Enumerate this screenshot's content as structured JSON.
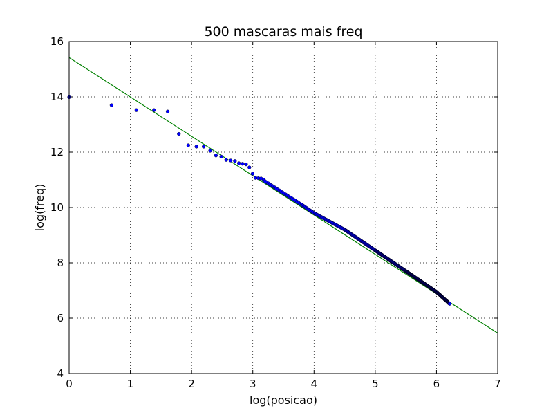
{
  "chart_data": {
    "type": "scatter",
    "title": "500 mascaras mais freq",
    "xlabel": "log(posicao)",
    "ylabel": "log(freq)",
    "xlim": [
      0,
      7
    ],
    "ylim": [
      4,
      16
    ],
    "x_ticks": [
      "0",
      "1",
      "2",
      "3",
      "4",
      "5",
      "6",
      "7"
    ],
    "y_ticks": [
      "4",
      "6",
      "8",
      "10",
      "12",
      "14",
      "16"
    ],
    "grid": true,
    "colors": {
      "points": "#0000ff",
      "fit_line": "#008000"
    },
    "series": [
      {
        "type": "scatter",
        "points": [
          [
            0.0,
            13.99
          ],
          [
            0.693,
            13.7
          ],
          [
            1.099,
            13.52
          ],
          [
            1.386,
            13.52
          ],
          [
            1.609,
            13.47
          ],
          [
            1.792,
            12.66
          ],
          [
            1.946,
            12.25
          ],
          [
            2.079,
            12.2
          ],
          [
            2.197,
            12.2
          ],
          [
            2.303,
            12.05
          ],
          [
            2.398,
            11.88
          ],
          [
            2.485,
            11.84
          ],
          [
            2.565,
            11.72
          ],
          [
            2.639,
            11.7
          ],
          [
            2.708,
            11.68
          ],
          [
            2.773,
            11.6
          ],
          [
            2.833,
            11.58
          ],
          [
            2.89,
            11.56
          ],
          [
            2.944,
            11.45
          ],
          [
            2.996,
            11.22
          ],
          [
            3.045,
            11.07
          ],
          [
            3.091,
            11.06
          ],
          [
            3.135,
            11.05
          ],
          [
            3.178,
            11.0
          ]
        ],
        "dense_segments": [
          {
            "x_start": 3.2,
            "y_start": 10.95,
            "x_end": 3.8,
            "y_end": 10.1,
            "n": 23
          },
          {
            "x_start": 3.8,
            "y_start": 10.1,
            "x_end": 4.0,
            "y_end": 9.8,
            "n": 11
          },
          {
            "x_start": 4.0,
            "y_start": 9.8,
            "x_end": 4.5,
            "y_end": 9.2,
            "n": 35
          },
          {
            "x_start": 4.5,
            "y_start": 9.2,
            "x_end": 5.0,
            "y_end": 8.45,
            "n": 58
          },
          {
            "x_start": 5.0,
            "y_start": 8.45,
            "x_end": 5.5,
            "y_end": 7.7,
            "n": 96
          },
          {
            "x_start": 5.5,
            "y_start": 7.7,
            "x_end": 6.0,
            "y_end": 6.95,
            "n": 159
          },
          {
            "x_start": 6.0,
            "y_start": 6.95,
            "x_end": 6.215,
            "y_end": 6.52,
            "n": 94
          }
        ]
      },
      {
        "type": "line",
        "points": [
          [
            0,
            15.42
          ],
          [
            7,
            5.46
          ]
        ]
      }
    ]
  }
}
